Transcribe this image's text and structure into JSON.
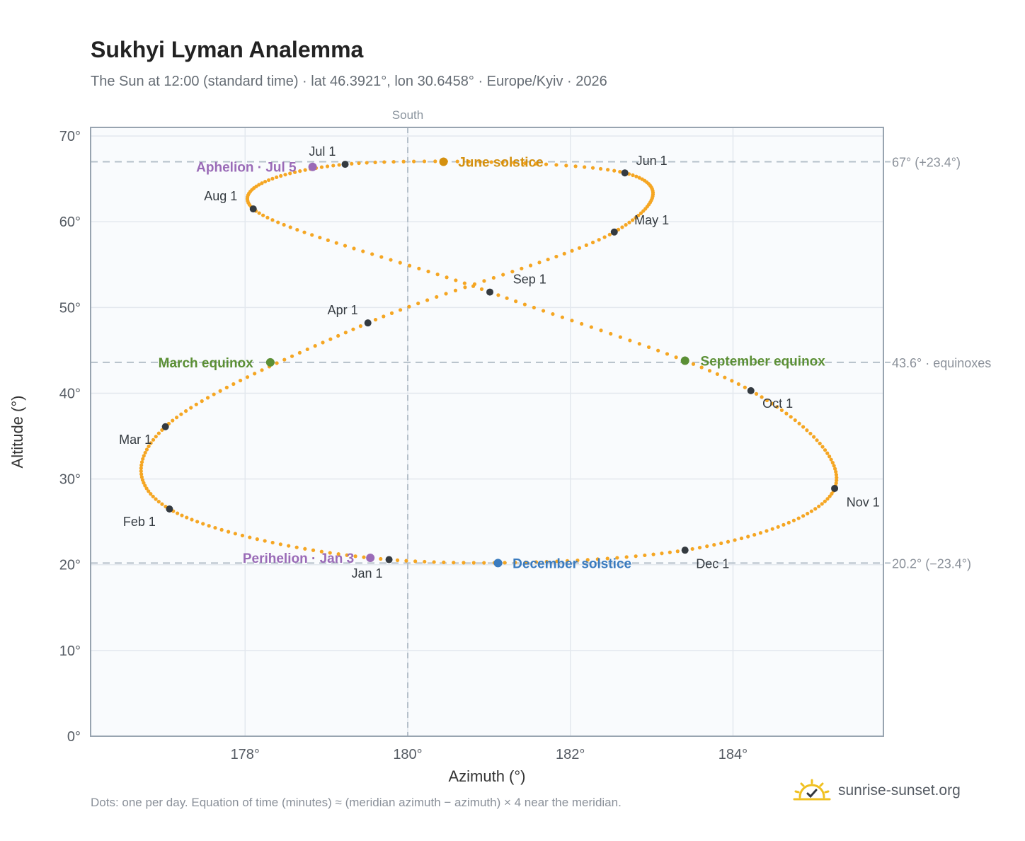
{
  "title": "Sukhyi Lyman Analemma",
  "subtitle": "The Sun at 12:00 (standard time) · lat 46.3921°, lon 30.6458° · Europe/Kyiv · 2026",
  "footnote": "Dots: one per day. Equation of time (minutes) ≈ (meridian azimuth − azimuth) × 4 near the meridian.",
  "brand": "sunrise-sunset.org",
  "colors": {
    "path": "#f5a623",
    "month_marker": "#343a40",
    "equinox": "#5b8f35",
    "june_solstice": "#d4900f",
    "december_solstice": "#3a7bbf",
    "apsis": "#9a6bb7",
    "reference_line": "#b5c0ca",
    "plot_bg": "#f9fbfd",
    "plot_border": "#98a4b0",
    "grid": "#e3e8ee"
  },
  "chart_data": {
    "type": "scatter",
    "xlabel": "Azimuth (°)",
    "ylabel": "Altitude (°)",
    "xlim": [
      176.1,
      185.85
    ],
    "ylim": [
      0,
      71
    ],
    "xticks": [
      178,
      180,
      182,
      184
    ],
    "xtick_labels": [
      "178°",
      "180°",
      "182°",
      "184°"
    ],
    "yticks": [
      0,
      10,
      20,
      30,
      40,
      50,
      60,
      70
    ],
    "ytick_labels": [
      "0°",
      "10°",
      "20°",
      "30°",
      "40°",
      "50°",
      "60°",
      "70°"
    ],
    "grid": true,
    "meridian": {
      "x": 180,
      "label": "South"
    },
    "reference_lines": [
      {
        "y": 67.0,
        "label": "67° (+23.4°)"
      },
      {
        "y": 43.6,
        "label": "43.6° · equinoxes"
      },
      {
        "y": 20.2,
        "label": "20.2° (−23.4°)"
      }
    ],
    "path_anchors": [
      {
        "day": 0,
        "x": 179.77,
        "y": 20.6
      },
      {
        "day": 31,
        "x": 177.07,
        "y": 26.5
      },
      {
        "day": 59,
        "x": 177.02,
        "y": 36.1
      },
      {
        "day": 90,
        "x": 179.51,
        "y": 48.2
      },
      {
        "day": 120,
        "x": 182.54,
        "y": 58.8
      },
      {
        "day": 151,
        "x": 182.67,
        "y": 65.7
      },
      {
        "day": 181,
        "x": 179.23,
        "y": 66.7
      },
      {
        "day": 212,
        "x": 178.1,
        "y": 61.5
      },
      {
        "day": 243,
        "x": 181.01,
        "y": 51.8
      },
      {
        "day": 273,
        "x": 184.22,
        "y": 40.3
      },
      {
        "day": 304,
        "x": 185.25,
        "y": 28.9
      },
      {
        "day": 334,
        "x": 183.41,
        "y": 21.7
      },
      {
        "day": 365,
        "x": 179.77,
        "y": 20.6
      }
    ],
    "month_markers": [
      {
        "label": "Jan 1",
        "x": 179.77,
        "y": 20.6,
        "lx": 179.5,
        "ly": 19.0
      },
      {
        "label": "Feb 1",
        "x": 177.07,
        "y": 26.5,
        "lx": 176.7,
        "ly": 25.0
      },
      {
        "label": "Mar 1",
        "x": 177.02,
        "y": 36.1,
        "lx": 176.65,
        "ly": 34.6
      },
      {
        "label": "Apr 1",
        "x": 179.51,
        "y": 48.2,
        "lx": 179.2,
        "ly": 49.7
      },
      {
        "label": "May 1",
        "x": 182.54,
        "y": 58.8,
        "lx": 183.0,
        "ly": 60.2
      },
      {
        "label": "Jun 1",
        "x": 182.67,
        "y": 65.7,
        "lx": 183.0,
        "ly": 67.1
      },
      {
        "label": "Jul 1",
        "x": 179.23,
        "y": 66.7,
        "lx": 178.95,
        "ly": 68.2
      },
      {
        "label": "Aug 1",
        "x": 178.1,
        "y": 61.5,
        "lx": 177.7,
        "ly": 63.0
      },
      {
        "label": "Sep 1",
        "x": 181.01,
        "y": 51.8,
        "lx": 181.5,
        "ly": 53.3
      },
      {
        "label": "Oct 1",
        "x": 184.22,
        "y": 40.3,
        "lx": 184.55,
        "ly": 38.8
      },
      {
        "label": "Nov 1",
        "x": 185.25,
        "y": 28.9,
        "lx": 185.6,
        "ly": 27.3
      },
      {
        "label": "Dec 1",
        "x": 183.41,
        "y": 21.7,
        "lx": 183.75,
        "ly": 20.1
      }
    ],
    "events": [
      {
        "label": "March equinox",
        "x": 178.31,
        "y": 43.6,
        "color": "equinox",
        "anchor": "end",
        "lx": 178.1,
        "ly": 43.6
      },
      {
        "label": "September equinox",
        "x": 183.41,
        "y": 43.8,
        "color": "equinox",
        "anchor": "start",
        "lx": 183.6,
        "ly": 43.8
      },
      {
        "label": "June solstice",
        "x": 180.44,
        "y": 67.0,
        "color": "june_solstice",
        "anchor": "start",
        "lx": 180.62,
        "ly": 67.0
      },
      {
        "label": "December solstice",
        "x": 181.11,
        "y": 20.2,
        "color": "december_solstice",
        "anchor": "start",
        "lx": 181.29,
        "ly": 20.2
      },
      {
        "label": "Aphelion · Jul 5",
        "x": 178.83,
        "y": 66.4,
        "color": "apsis",
        "anchor": "end",
        "lx": 178.63,
        "ly": 66.4
      },
      {
        "label": "Perihelion · Jan 3",
        "x": 179.54,
        "y": 20.8,
        "color": "apsis",
        "anchor": "end",
        "lx": 179.34,
        "ly": 20.8
      }
    ]
  }
}
